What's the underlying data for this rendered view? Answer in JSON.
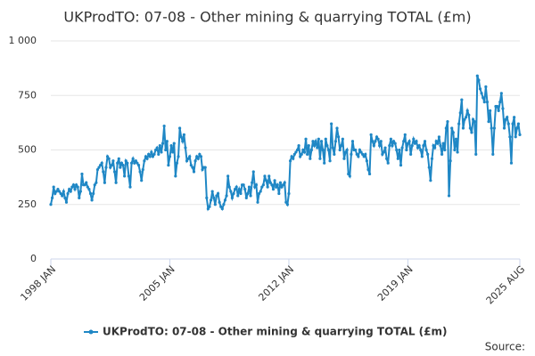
{
  "chart_data": {
    "type": "line",
    "title": "UKProdTO: 07-08 - Other mining & quarrying TOTAL (£m)",
    "source": "Source:",
    "categories": [
      "1998 JAN",
      null,
      null,
      null,
      null,
      null,
      null,
      null,
      null,
      null,
      null,
      null,
      null,
      null,
      null,
      null,
      null,
      null,
      null,
      null,
      null,
      null,
      null,
      null,
      null,
      null,
      null,
      null,
      null,
      null,
      null,
      null,
      null,
      null,
      null,
      null,
      null,
      null,
      null,
      null,
      null,
      null,
      null,
      null,
      null,
      null,
      null,
      null,
      null,
      null,
      null,
      null,
      null,
      null,
      null,
      null,
      null,
      null,
      null,
      null,
      null,
      null,
      null,
      null,
      null,
      null,
      null,
      null,
      null,
      null,
      null,
      null,
      null,
      null,
      null,
      null,
      null,
      null,
      null,
      null,
      null,
      null,
      null,
      null,
      "2005 JAN",
      null,
      null,
      null,
      null,
      null,
      null,
      null,
      null,
      null,
      null,
      null,
      null,
      null,
      null,
      null,
      null,
      null,
      null,
      null,
      null,
      null,
      null,
      null,
      null,
      null,
      null,
      null,
      null,
      null,
      null,
      null,
      null,
      null,
      null,
      null,
      null,
      null,
      null,
      null,
      null,
      null,
      null,
      null,
      null,
      null,
      null,
      null,
      null,
      null,
      null,
      null,
      null,
      null,
      null,
      null,
      null,
      null,
      null,
      null,
      null,
      null,
      null,
      null,
      null,
      null,
      null,
      null,
      null,
      null,
      null,
      null,
      null,
      null,
      null,
      null,
      null,
      null,
      null,
      null,
      null,
      null,
      null,
      null,
      "2012 JAN",
      null,
      null,
      null,
      null,
      null,
      null,
      null,
      null,
      null,
      null,
      null,
      null,
      null,
      null,
      null,
      null,
      null,
      null,
      null,
      null,
      null,
      null,
      null,
      null,
      null,
      null,
      null,
      null,
      null,
      null,
      null,
      null,
      null,
      null,
      null,
      null,
      null,
      null,
      null,
      null,
      null,
      null,
      null,
      null,
      null,
      null,
      null,
      null,
      null,
      null,
      null,
      null,
      null,
      null,
      null,
      null,
      null,
      null,
      null,
      null,
      null,
      null,
      null,
      null,
      null,
      null,
      null,
      null,
      null,
      null,
      null,
      null,
      null,
      null,
      null,
      null,
      null,
      null,
      null,
      null,
      null,
      null,
      null,
      "2019 JAN",
      null,
      null,
      null,
      null,
      null,
      null,
      null,
      null,
      null,
      null,
      null,
      null,
      null,
      null,
      null,
      null,
      null,
      null,
      null,
      null,
      null,
      null,
      null,
      null,
      null,
      null,
      null,
      null,
      null,
      null,
      null,
      null,
      null,
      null,
      null,
      null,
      null,
      null,
      null,
      null,
      null,
      null,
      null,
      null,
      null,
      null,
      null,
      null,
      null,
      null,
      null,
      null,
      null,
      null,
      null,
      null,
      null,
      null,
      null,
      null,
      null,
      null,
      null,
      null,
      null,
      null,
      null,
      null,
      null,
      null,
      null,
      null,
      null,
      null,
      null,
      null,
      null,
      null,
      "2025 AUG"
    ],
    "series": [
      {
        "name": "UKProdTO: 07-08 - Other mining & quarrying TOTAL (£m)",
        "color": "#1f87c5",
        "values": [
          250,
          280,
          330,
          300,
          310,
          320,
          310,
          300,
          290,
          310,
          280,
          260,
          300,
          320,
          310,
          330,
          340,
          320,
          340,
          330,
          280,
          310,
          390,
          340,
          340,
          350,
          330,
          320,
          300,
          270,
          300,
          340,
          350,
          410,
          420,
          430,
          440,
          400,
          350,
          420,
          470,
          460,
          420,
          430,
          450,
          400,
          350,
          440,
          460,
          420,
          440,
          430,
          380,
          450,
          440,
          380,
          330,
          440,
          460,
          440,
          450,
          440,
          430,
          400,
          360,
          410,
          450,
          470,
          460,
          480,
          470,
          490,
          470,
          480,
          500,
          510,
          480,
          520,
          490,
          530,
          610,
          500,
          540,
          430,
          470,
          520,
          490,
          530,
          380,
          440,
          470,
          600,
          560,
          540,
          570,
          510,
          450,
          460,
          470,
          430,
          420,
          400,
          450,
          470,
          460,
          480,
          470,
          410,
          420,
          420,
          280,
          230,
          240,
          270,
          310,
          280,
          250,
          290,
          300,
          260,
          240,
          230,
          250,
          270,
          290,
          380,
          330,
          310,
          280,
          300,
          320,
          330,
          290,
          320,
          300,
          340,
          340,
          320,
          280,
          300,
          330,
          290,
          350,
          400,
          330,
          340,
          260,
          300,
          310,
          330,
          340,
          380,
          360,
          330,
          380,
          350,
          340,
          320,
          360,
          330,
          340,
          300,
          350,
          330,
          340,
          350,
          260,
          250,
          300,
          450,
          470,
          460,
          480,
          490,
          500,
          520,
          470,
          480,
          500,
          490,
          550,
          480,
          520,
          460,
          500,
          540,
          520,
          540,
          510,
          550,
          460,
          540,
          500,
          440,
          550,
          520,
          500,
          450,
          620,
          510,
          480,
          540,
          600,
          560,
          500,
          520,
          550,
          460,
          490,
          500,
          390,
          380,
          480,
          540,
          500,
          500,
          480,
          470,
          500,
          490,
          480,
          470,
          480,
          450,
          410,
          390,
          570,
          540,
          520,
          540,
          560,
          550,
          520,
          540,
          480,
          490,
          510,
          460,
          440,
          520,
          550,
          520,
          540,
          530,
          500,
          460,
          500,
          430,
          510,
          540,
          570,
          500,
          530,
          540,
          480,
          520,
          550,
          530,
          540,
          510,
          520,
          500,
          470,
          520,
          540,
          500,
          480,
          420,
          360,
          460,
          520,
          510,
          540,
          530,
          560,
          520,
          480,
          530,
          500,
          600,
          630,
          290,
          450,
          600,
          580,
          500,
          550,
          490,
          620,
          670,
          730,
          600,
          640,
          650,
          680,
          660,
          600,
          580,
          640,
          630,
          480,
          840,
          820,
          780,
          760,
          740,
          720,
          790,
          720,
          630,
          680,
          600,
          480,
          600,
          700,
          700,
          680,
          720,
          760,
          690,
          600,
          640,
          650,
          620,
          560,
          440,
          620,
          650,
          560,
          600,
          620,
          570
        ]
      }
    ],
    "ylim": [
      0,
      1000
    ],
    "yticks": [
      0,
      250,
      500,
      750,
      {
        "value": 1000,
        "label": "1 000"
      }
    ],
    "grid": true
  }
}
